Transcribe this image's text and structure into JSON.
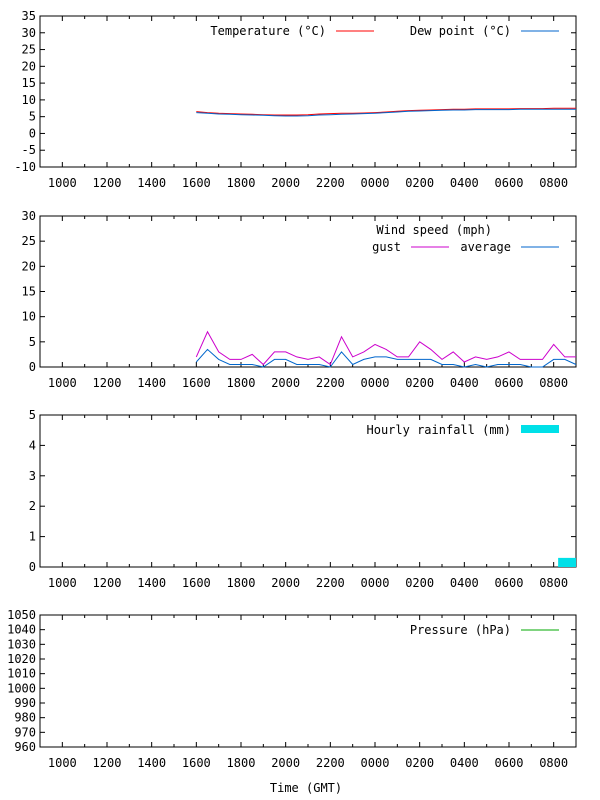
{
  "xlabel": "Time (GMT)",
  "x_tick_labels": [
    "1000",
    "1200",
    "1400",
    "1600",
    "1800",
    "2000",
    "2200",
    "0000",
    "0200",
    "0400",
    "0600",
    "0800"
  ],
  "chart_data": [
    {
      "type": "line",
      "title": "",
      "ylim": [
        -10,
        35
      ],
      "y_ticks": [
        -10,
        -5,
        0,
        5,
        10,
        15,
        20,
        25,
        30,
        35
      ],
      "x_unit": "hours since 09:00 GMT",
      "xlim": [
        0,
        24
      ],
      "series": [
        {
          "name": "Temperature (°C)",
          "color": "#ff0000",
          "x": [
            7,
            7.5,
            8,
            8.5,
            9,
            9.5,
            10,
            10.5,
            11,
            11.5,
            12,
            12.5,
            13,
            13.5,
            14,
            14.5,
            15,
            15.5,
            16,
            16.5,
            17,
            17.5,
            18,
            18.5,
            19,
            19.5,
            20,
            20.5,
            21,
            21.5,
            22,
            22.5,
            23,
            23.5,
            24
          ],
          "values": [
            6.5,
            6.2,
            6.0,
            5.9,
            5.8,
            5.7,
            5.6,
            5.5,
            5.5,
            5.5,
            5.6,
            5.8,
            5.9,
            6.0,
            6.0,
            6.1,
            6.2,
            6.4,
            6.6,
            6.8,
            6.9,
            7.0,
            7.1,
            7.2,
            7.2,
            7.3,
            7.3,
            7.3,
            7.3,
            7.4,
            7.4,
            7.4,
            7.5,
            7.5,
            7.5
          ]
        },
        {
          "name": "Dew point (°C)",
          "color": "#0066cc",
          "x": [
            7,
            7.5,
            8,
            8.5,
            9,
            9.5,
            10,
            10.5,
            11,
            11.5,
            12,
            12.5,
            13,
            13.5,
            14,
            14.5,
            15,
            15.5,
            16,
            16.5,
            17,
            17.5,
            18,
            18.5,
            19,
            19.5,
            20,
            20.5,
            21,
            21.5,
            22,
            22.5,
            23,
            23.5,
            24
          ],
          "values": [
            6.2,
            6.0,
            5.8,
            5.7,
            5.6,
            5.5,
            5.4,
            5.3,
            5.2,
            5.2,
            5.3,
            5.5,
            5.6,
            5.7,
            5.8,
            5.9,
            6.0,
            6.2,
            6.4,
            6.6,
            6.7,
            6.8,
            6.9,
            7.0,
            7.0,
            7.1,
            7.1,
            7.1,
            7.1,
            7.2,
            7.2,
            7.2,
            7.2,
            7.2,
            7.2
          ]
        }
      ]
    },
    {
      "type": "line",
      "title": "Wind speed (mph)",
      "ylim": [
        0,
        30
      ],
      "y_ticks": [
        0,
        5,
        10,
        15,
        20,
        25,
        30
      ],
      "x_unit": "hours since 09:00 GMT",
      "xlim": [
        0,
        24
      ],
      "series": [
        {
          "name": "gust",
          "color": "#cc00cc",
          "x": [
            7,
            7.5,
            8,
            8.5,
            9,
            9.5,
            10,
            10.5,
            11,
            11.5,
            12,
            12.5,
            13,
            13.5,
            14,
            14.5,
            15,
            15.5,
            16,
            16.5,
            17,
            17.5,
            18,
            18.5,
            19,
            19.5,
            20,
            20.5,
            21,
            21.5,
            22,
            22.5,
            23,
            23.5,
            24
          ],
          "values": [
            2.0,
            7.0,
            3.0,
            1.5,
            1.5,
            2.5,
            0.5,
            3.0,
            3.0,
            2.0,
            1.5,
            2.0,
            0.5,
            6.0,
            2.0,
            3.0,
            4.5,
            3.5,
            2.0,
            2.0,
            5.0,
            3.5,
            1.5,
            3.0,
            1.0,
            2.0,
            1.5,
            2.0,
            3.0,
            1.5,
            1.5,
            1.5,
            4.5,
            2.0,
            2.0
          ]
        },
        {
          "name": "average",
          "color": "#0066cc",
          "x": [
            7,
            7.5,
            8,
            8.5,
            9,
            9.5,
            10,
            10.5,
            11,
            11.5,
            12,
            12.5,
            13,
            13.5,
            14,
            14.5,
            15,
            15.5,
            16,
            16.5,
            17,
            17.5,
            18,
            18.5,
            19,
            19.5,
            20,
            20.5,
            21,
            21.5,
            22,
            22.5,
            23,
            23.5,
            24
          ],
          "values": [
            1.0,
            3.5,
            1.5,
            0.5,
            0.5,
            0.5,
            0.0,
            1.5,
            1.5,
            0.5,
            0.5,
            0.5,
            0.0,
            3.0,
            0.5,
            1.5,
            2.0,
            2.0,
            1.5,
            1.5,
            1.5,
            1.5,
            0.5,
            0.5,
            0.0,
            0.5,
            0.0,
            0.5,
            0.5,
            0.5,
            0.0,
            0.0,
            1.5,
            1.5,
            0.5
          ]
        }
      ]
    },
    {
      "type": "bar",
      "title": "",
      "ylim": [
        0,
        5
      ],
      "y_ticks": [
        0,
        1,
        2,
        3,
        4,
        5
      ],
      "x_unit": "hours since 09:00 GMT",
      "xlim": [
        0,
        24
      ],
      "series": [
        {
          "name": "Hourly rainfall (mm)",
          "color": "#00e0e8",
          "bars": [
            {
              "x_start": 23.2,
              "x_end": 24,
              "value": 0.3
            }
          ]
        }
      ]
    },
    {
      "type": "line",
      "title": "",
      "ylim": [
        960,
        1050
      ],
      "y_ticks": [
        960,
        970,
        980,
        990,
        1000,
        1010,
        1020,
        1030,
        1040,
        1050
      ],
      "x_unit": "hours since 09:00 GMT",
      "xlim": [
        0,
        24
      ],
      "series": [
        {
          "name": "Pressure (hPa)",
          "color": "#00aa00",
          "x": [],
          "values": []
        }
      ]
    }
  ]
}
